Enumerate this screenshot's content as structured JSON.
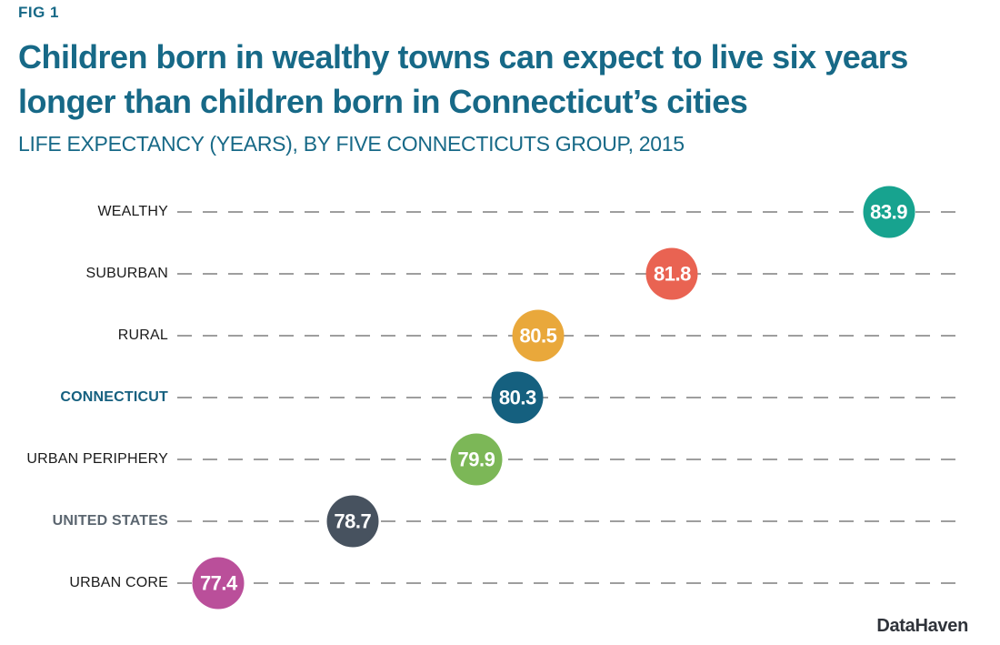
{
  "figure": {
    "tag": "FIG 1",
    "title_lines": [
      "Children born in wealthy towns can expect to live six years",
      "longer than children born in Connecticut’s cities"
    ],
    "subtitle": "LIFE EXPECTANCY (YEARS), BY FIVE CONNECTICUTS GROUP, 2015",
    "source": "DataHaven"
  },
  "colors": {
    "heading_teal": "#176987",
    "gridline_gray": "#9e9e9e",
    "label_default": "#1a1a1a",
    "label_connecticut": "#15607f",
    "label_united_states": "#5b6670",
    "source_dark": "#2f333a"
  },
  "chart_data": {
    "type": "scatter",
    "title": "Children born in wealthy towns can expect to live six years longer than children born in Connecticut’s cities",
    "subtitle": "LIFE EXPECTANCY (YEARS), BY FIVE CONNECTICUTS GROUP, 2015",
    "xlabel": "Life expectancy (years)",
    "ylabel": "Five Connecticuts group",
    "xlim": [
      77.0,
      84.6
    ],
    "grid": "horizontal-dashed",
    "legend": "none",
    "categories": [
      "WEALTHY",
      "SUBURBAN",
      "RURAL",
      "CONNECTICUT",
      "URBAN PERIPHERY",
      "UNITED STATES",
      "URBAN CORE"
    ],
    "values": [
      83.9,
      81.8,
      80.5,
      80.3,
      79.9,
      78.7,
      77.4
    ],
    "value_labels": [
      "83.9",
      "81.8",
      "80.5",
      "80.3",
      "79.9",
      "78.7",
      "77.4"
    ],
    "point_colors": [
      "#17a38f",
      "#e96352",
      "#e9a83b",
      "#15607f",
      "#7cb757",
      "#47525f",
      "#ba4f9a"
    ],
    "label_colors": [
      "#1a1a1a",
      "#1a1a1a",
      "#1a1a1a",
      "#15607f",
      "#1a1a1a",
      "#5b6670",
      "#1a1a1a"
    ],
    "label_bold": [
      false,
      false,
      false,
      true,
      false,
      true,
      false
    ]
  }
}
